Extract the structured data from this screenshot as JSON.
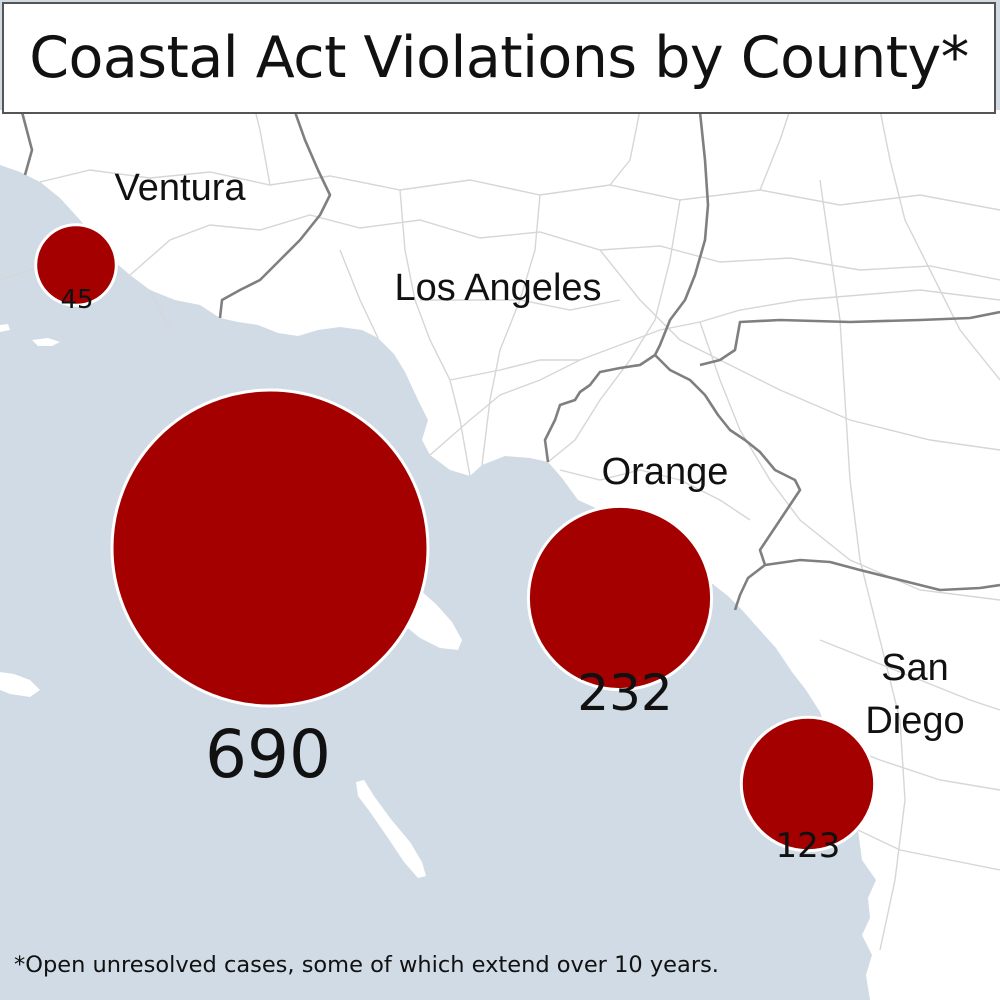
{
  "title": "Coastal Act Violations by County*",
  "footnote": "*Open unresolved cases, some of which extend over 10 years.",
  "colors": {
    "bubble": "#a50000",
    "ocean": "#d0dbe5",
    "land": "#ffffff",
    "county_border": "#7f7f7f",
    "roads": "#d6d6d6"
  },
  "counties": [
    {
      "name": "Ventura",
      "label_lines": [
        "Ventura"
      ],
      "violations": 45,
      "value_label": "45"
    },
    {
      "name": "Los Angeles",
      "label_lines": [
        "Los Angeles"
      ],
      "violations": 690,
      "value_label": "690"
    },
    {
      "name": "Orange",
      "label_lines": [
        "Orange"
      ],
      "violations": 232,
      "value_label": "232"
    },
    {
      "name": "San Diego",
      "label_lines": [
        "San",
        "Diego"
      ],
      "violations": 123,
      "value_label": "123"
    }
  ]
}
